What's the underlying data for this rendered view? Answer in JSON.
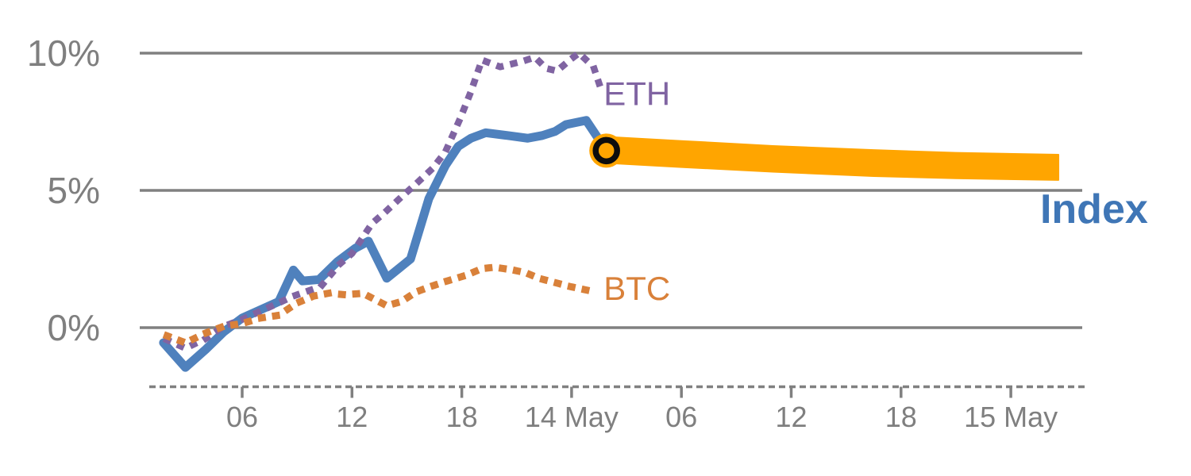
{
  "chart_data": {
    "type": "line",
    "title": "",
    "description_visible_text_only": true,
    "y_axis": {
      "unit": "percent",
      "ticks": [
        {
          "label": "10%",
          "value": 10
        },
        {
          "label": "5%",
          "value": 5
        },
        {
          "label": "0%",
          "value": 0
        }
      ],
      "range": [
        -2.2,
        10.5
      ],
      "grid": true
    },
    "x_axis": {
      "unit": "hours since 13 May 00:00",
      "ticks": [
        {
          "hour": 6,
          "label": "06"
        },
        {
          "hour": 12,
          "label": "12"
        },
        {
          "hour": 18,
          "label": "18"
        },
        {
          "hour": 24,
          "label": "14 May"
        },
        {
          "hour": 30,
          "label": "06"
        },
        {
          "hour": 36,
          "label": "12"
        },
        {
          "hour": 42,
          "label": "18"
        },
        {
          "hour": 48,
          "label": "15 May"
        }
      ],
      "range_hours": [
        0.4,
        52.0
      ],
      "axis_style": "dashed"
    },
    "series": [
      {
        "name": "Index",
        "style": "solid",
        "color": "#4f81bd",
        "stroke_width": 11,
        "points": [
          [
            1.7,
            -0.55
          ],
          [
            2.9,
            -1.45
          ],
          [
            4.0,
            -0.8
          ],
          [
            5.0,
            -0.15
          ],
          [
            6.0,
            0.35
          ],
          [
            7.0,
            0.65
          ],
          [
            8.0,
            0.95
          ],
          [
            8.8,
            2.1
          ],
          [
            9.3,
            1.7
          ],
          [
            10.2,
            1.75
          ],
          [
            11.2,
            2.4
          ],
          [
            12.2,
            2.9
          ],
          [
            12.9,
            3.15
          ],
          [
            13.9,
            1.8
          ],
          [
            15.2,
            2.5
          ],
          [
            16.2,
            4.7
          ],
          [
            17.1,
            5.9
          ],
          [
            17.8,
            6.6
          ],
          [
            18.5,
            6.9
          ],
          [
            19.3,
            7.1
          ],
          [
            20.5,
            7.0
          ],
          [
            21.6,
            6.9
          ],
          [
            22.4,
            7.0
          ],
          [
            23.1,
            7.15
          ],
          [
            23.7,
            7.4
          ],
          [
            24.8,
            7.55
          ],
          [
            25.9,
            6.45
          ]
        ]
      },
      {
        "name": "ETH",
        "style": "dotted",
        "color": "#8064a2",
        "stroke_width": 8.5,
        "points": [
          [
            1.9,
            -0.45
          ],
          [
            2.9,
            -0.75
          ],
          [
            4.0,
            -0.4
          ],
          [
            5.0,
            0.05
          ],
          [
            6.0,
            0.3
          ],
          [
            7.0,
            0.6
          ],
          [
            8.0,
            0.9
          ],
          [
            8.8,
            1.15
          ],
          [
            10.3,
            1.5
          ],
          [
            11.3,
            2.3
          ],
          [
            12.0,
            2.7
          ],
          [
            12.5,
            3.2
          ],
          [
            13.1,
            3.8
          ],
          [
            13.8,
            4.2
          ],
          [
            14.6,
            4.7
          ],
          [
            15.6,
            5.3
          ],
          [
            16.4,
            5.8
          ],
          [
            17.1,
            6.4
          ],
          [
            17.9,
            7.6
          ],
          [
            18.5,
            8.6
          ],
          [
            19.1,
            9.75
          ],
          [
            20.1,
            9.5
          ],
          [
            21.3,
            9.7
          ],
          [
            22.0,
            9.85
          ],
          [
            22.6,
            9.45
          ],
          [
            23.2,
            9.35
          ],
          [
            23.9,
            9.75
          ],
          [
            24.4,
            10.0
          ],
          [
            25.2,
            9.5
          ],
          [
            25.7,
            8.5
          ]
        ]
      },
      {
        "name": "BTC",
        "style": "dotted",
        "color": "#d9813a",
        "stroke_width": 9,
        "points": [
          [
            1.9,
            -0.3
          ],
          [
            2.9,
            -0.55
          ],
          [
            4.0,
            -0.2
          ],
          [
            5.0,
            0.05
          ],
          [
            6.0,
            0.15
          ],
          [
            7.0,
            0.35
          ],
          [
            8.0,
            0.45
          ],
          [
            9.0,
            0.9
          ],
          [
            9.9,
            1.15
          ],
          [
            10.7,
            1.25
          ],
          [
            11.6,
            1.2
          ],
          [
            12.6,
            1.25
          ],
          [
            13.9,
            0.8
          ],
          [
            14.7,
            0.95
          ],
          [
            15.5,
            1.3
          ],
          [
            16.3,
            1.5
          ],
          [
            17.2,
            1.7
          ],
          [
            18.2,
            1.9
          ],
          [
            19.1,
            2.15
          ],
          [
            19.8,
            2.2
          ],
          [
            20.8,
            2.1
          ],
          [
            21.5,
            2.0
          ],
          [
            22.2,
            1.8
          ],
          [
            23.9,
            1.5
          ],
          [
            25.3,
            1.3
          ]
        ]
      }
    ],
    "forecast_band": {
      "belongs_to_series": "Index",
      "color": "#ffa500",
      "hours": [
        25.9,
        30.0,
        35.0,
        40.5,
        45.0,
        50.6
      ],
      "top": [
        6.95,
        6.8,
        6.62,
        6.47,
        6.37,
        6.3
      ],
      "bottom": [
        6.0,
        5.85,
        5.68,
        5.52,
        5.44,
        5.38
      ]
    },
    "marker": {
      "hour": 25.9,
      "value": 6.45,
      "halo_color": "#ffa500",
      "halo_radius": 21.5,
      "ring_color": "#0d0d0d",
      "ring_radius": 13.5,
      "ring_width": 7.5
    },
    "labels": [
      {
        "id": "eth-label",
        "text": "ETH",
        "color": "#8064a2",
        "hour": 25.75,
        "value": 8.55,
        "size": 42,
        "weight": "normal"
      },
      {
        "id": "btc-label",
        "text": "BTC",
        "color": "#d9813a",
        "hour": 25.75,
        "value": 1.45,
        "size": 42,
        "weight": "normal"
      },
      {
        "id": "index-label",
        "text": "Index",
        "color": "#3f76b6",
        "hour": 49.6,
        "value": 4.36,
        "size": 52,
        "weight": "bold"
      }
    ],
    "grid_color": "#808080",
    "text_color": "#7f7f7f",
    "legend_position": "inline-annotations"
  }
}
